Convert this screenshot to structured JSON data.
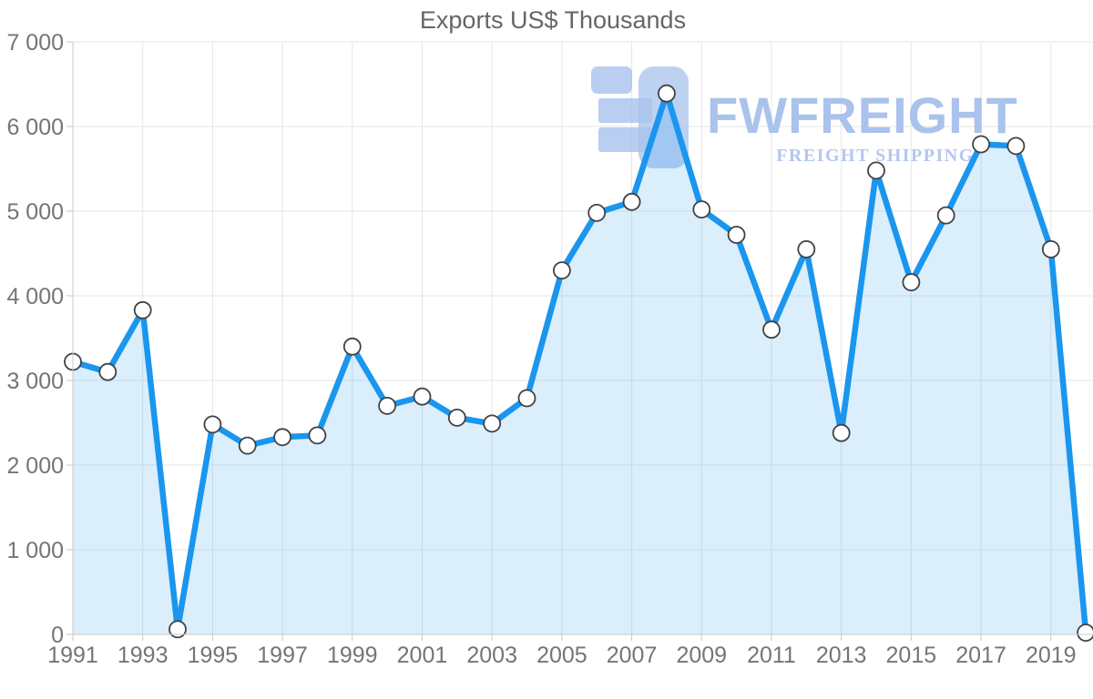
{
  "page": {
    "background": "#ffffff"
  },
  "chart_data": {
    "type": "line",
    "title": "Exports US$ Thousands",
    "xlabel": "",
    "ylabel": "",
    "x": [
      1991,
      1992,
      1993,
      1994,
      1995,
      1996,
      1997,
      1998,
      1999,
      2000,
      2001,
      2002,
      2003,
      2004,
      2005,
      2006,
      2007,
      2008,
      2009,
      2010,
      2011,
      2012,
      2013,
      2014,
      2015,
      2016,
      2017,
      2018,
      2019,
      2020
    ],
    "values": [
      3220,
      3100,
      3830,
      60,
      2480,
      2230,
      2330,
      2350,
      3400,
      2700,
      2810,
      2560,
      2490,
      2790,
      4300,
      4980,
      5110,
      6390,
      5020,
      4720,
      3600,
      4550,
      2380,
      5480,
      4160,
      4950,
      5790,
      5770,
      4550,
      20
    ],
    "series": [
      {
        "name": "Exports US$ Thousands",
        "values": [
          3220,
          3100,
          3830,
          60,
          2480,
          2230,
          2330,
          2350,
          3400,
          2700,
          2810,
          2560,
          2490,
          2790,
          4300,
          4980,
          5110,
          6390,
          5020,
          4720,
          3600,
          4550,
          2380,
          5480,
          4160,
          4950,
          5790,
          5770,
          4550,
          20
        ]
      }
    ],
    "x_tick_labels": [
      "1991",
      "1993",
      "1995",
      "1997",
      "1999",
      "2001",
      "2003",
      "2005",
      "2007",
      "2009",
      "2011",
      "2013",
      "2015",
      "2017",
      "2019"
    ],
    "x_tick_years": [
      1991,
      1993,
      1995,
      1997,
      1999,
      2001,
      2003,
      2005,
      2007,
      2009,
      2011,
      2013,
      2015,
      2017,
      2019
    ],
    "y_ticks": [
      0,
      1000,
      2000,
      3000,
      4000,
      5000,
      6000,
      7000
    ],
    "y_tick_labels": [
      "0",
      "1 000",
      "2 000",
      "3 000",
      "4 000",
      "5 000",
      "6 000",
      "7 000"
    ],
    "ylim": [
      0,
      7000
    ],
    "grid": "both",
    "legend_position": "none",
    "area_under_line": true,
    "style": {
      "line_color": "#1a96ee",
      "area_fill": "rgba(26,150,238,0.16)",
      "marker_fill": "#ffffff",
      "marker_stroke": "#424242",
      "grid_color": "#e6e6e6",
      "axis_color": "#c9c9c9",
      "tick_label_color": "#757575",
      "title_color": "#666666"
    }
  },
  "watermark": {
    "brand": "FWFREIGHT",
    "tagline": "FREIGHT SHIPPING",
    "color": "#a6c0ec",
    "logo_icon": "fwfreight-logo"
  }
}
